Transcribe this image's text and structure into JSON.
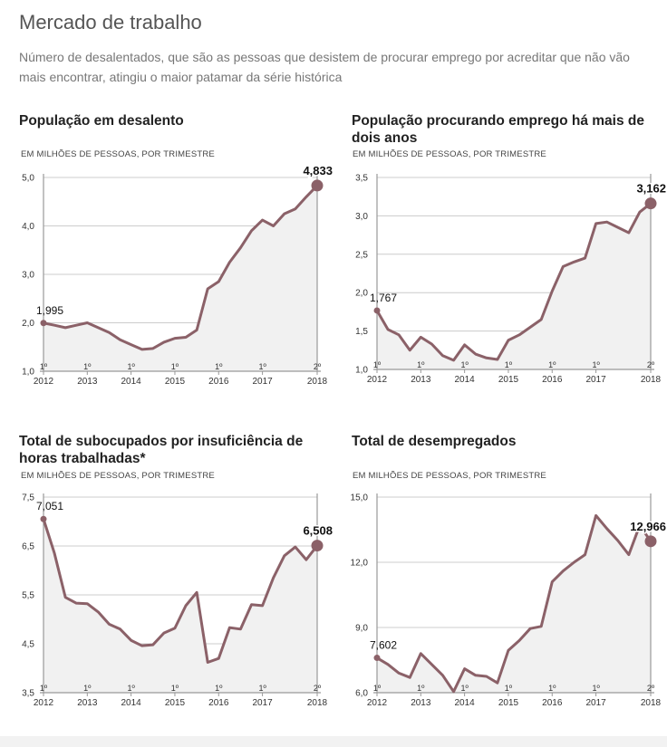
{
  "page": {
    "title": "Mercado de trabalho",
    "subtitle": "Número de desalentados, que são as pessoas que desistem de procurar emprego por acreditar que não vão mais encontrar, atingiu o maior patamar da série histórica"
  },
  "colors": {
    "line": "#8b6168",
    "fill": "#f1f1f1",
    "axis": "#999999",
    "grid": "#cccccc"
  },
  "chart_data": [
    {
      "id": "desalento",
      "type": "area",
      "title": "População em desalento",
      "unit": "EM MILHÕES DE PESSOAS, POR TRIMESTRE",
      "yticks": [
        1.0,
        2.0,
        3.0,
        4.0,
        5.0
      ],
      "ytick_labels": [
        "1,0",
        "2,0",
        "3,0",
        "4,0",
        "5,0"
      ],
      "ylim": [
        1.0,
        5.0
      ],
      "x_labels": [
        {
          "quarter": "1º",
          "year": "2012",
          "index": 0
        },
        {
          "quarter": "1º",
          "year": "2013",
          "index": 4
        },
        {
          "quarter": "1º",
          "year": "2014",
          "index": 8
        },
        {
          "quarter": "1º",
          "year": "2015",
          "index": 12
        },
        {
          "quarter": "1º",
          "year": "2016",
          "index": 16
        },
        {
          "quarter": "1º",
          "year": "2017",
          "index": 20
        },
        {
          "quarter": "2º",
          "year": "2018",
          "index": 25
        }
      ],
      "values": [
        1.995,
        1.95,
        1.9,
        1.95,
        2.0,
        1.9,
        1.8,
        1.65,
        1.55,
        1.45,
        1.47,
        1.6,
        1.68,
        1.7,
        1.85,
        2.7,
        2.85,
        3.25,
        3.55,
        3.9,
        4.12,
        4.0,
        4.25,
        4.35,
        4.6,
        4.833
      ],
      "start_label": "1,995",
      "end_label": "4,833"
    },
    {
      "id": "procurando",
      "type": "area",
      "title": "População procurando emprego há mais de dois anos",
      "unit": "EM MILHÕES DE PESSOAS, POR TRIMESTRE",
      "yticks": [
        1.0,
        1.5,
        2.0,
        2.5,
        3.0,
        3.5
      ],
      "ytick_labels": [
        "1,0",
        "1,5",
        "2,0",
        "2,5",
        "3,0",
        "3,5"
      ],
      "ylim": [
        1.0,
        3.5
      ],
      "x_labels": [
        {
          "quarter": "1º",
          "year": "2012",
          "index": 0
        },
        {
          "quarter": "1º",
          "year": "2013",
          "index": 4
        },
        {
          "quarter": "1º",
          "year": "2014",
          "index": 8
        },
        {
          "quarter": "1º",
          "year": "2015",
          "index": 12
        },
        {
          "quarter": "1º",
          "year": "2016",
          "index": 16
        },
        {
          "quarter": "1º",
          "year": "2017",
          "index": 20
        },
        {
          "quarter": "2º",
          "year": "2018",
          "index": 25
        }
      ],
      "values": [
        1.767,
        1.52,
        1.45,
        1.25,
        1.42,
        1.33,
        1.18,
        1.12,
        1.32,
        1.2,
        1.15,
        1.13,
        1.38,
        1.45,
        1.55,
        1.65,
        2.02,
        2.34,
        2.4,
        2.45,
        2.9,
        2.92,
        2.85,
        2.78,
        3.05,
        3.162
      ],
      "start_label": "1,767",
      "end_label": "3,162"
    },
    {
      "id": "subocupados",
      "type": "area",
      "title": "Total de subocupados por insuficiência de horas trabalhadas*",
      "unit": "EM MILHÕES DE PESSOAS, POR TRIMESTRE",
      "yticks": [
        3.5,
        4.5,
        5.5,
        6.5,
        7.5
      ],
      "ytick_labels": [
        "3,5",
        "4,5",
        "5,5",
        "6,5",
        "7,5"
      ],
      "ylim": [
        3.5,
        7.5
      ],
      "x_labels": [
        {
          "quarter": "1º",
          "year": "2012",
          "index": 0
        },
        {
          "quarter": "1º",
          "year": "2013",
          "index": 4
        },
        {
          "quarter": "1º",
          "year": "2014",
          "index": 8
        },
        {
          "quarter": "1º",
          "year": "2015",
          "index": 12
        },
        {
          "quarter": "1º",
          "year": "2016",
          "index": 16
        },
        {
          "quarter": "1º",
          "year": "2017",
          "index": 20
        },
        {
          "quarter": "2º",
          "year": "2018",
          "index": 25
        }
      ],
      "values": [
        7.051,
        6.35,
        5.45,
        5.33,
        5.32,
        5.15,
        4.9,
        4.8,
        4.57,
        4.46,
        4.48,
        4.72,
        4.82,
        5.28,
        5.55,
        4.12,
        4.2,
        4.83,
        4.8,
        5.3,
        5.28,
        5.85,
        6.3,
        6.48,
        6.22,
        6.508
      ],
      "start_label": "7,051",
      "end_label": "6,508"
    },
    {
      "id": "desempregados",
      "type": "area",
      "title": "Total de desempregados",
      "unit": "EM MILHÕES DE PESSOAS, POR TRIMESTRE",
      "yticks": [
        6.0,
        9.0,
        12.0,
        15.0
      ],
      "ytick_labels": [
        "6,0",
        "9,0",
        "12,0",
        "15,0"
      ],
      "ylim": [
        6.0,
        15.0
      ],
      "x_labels": [
        {
          "quarter": "1º",
          "year": "2012",
          "index": 0
        },
        {
          "quarter": "1º",
          "year": "2013",
          "index": 4
        },
        {
          "quarter": "1º",
          "year": "2014",
          "index": 8
        },
        {
          "quarter": "1º",
          "year": "2015",
          "index": 12
        },
        {
          "quarter": "1º",
          "year": "2016",
          "index": 16
        },
        {
          "quarter": "1º",
          "year": "2017",
          "index": 20
        },
        {
          "quarter": "2º",
          "year": "2018",
          "index": 25
        }
      ],
      "values": [
        7.602,
        7.3,
        6.9,
        6.7,
        7.8,
        7.3,
        6.8,
        6.05,
        7.1,
        6.8,
        6.75,
        6.45,
        7.95,
        8.4,
        8.95,
        9.05,
        11.1,
        11.6,
        12.0,
        12.35,
        14.15,
        13.55,
        13.0,
        12.35,
        13.7,
        12.966
      ],
      "start_label": "7,602",
      "end_label": "12,966"
    }
  ]
}
